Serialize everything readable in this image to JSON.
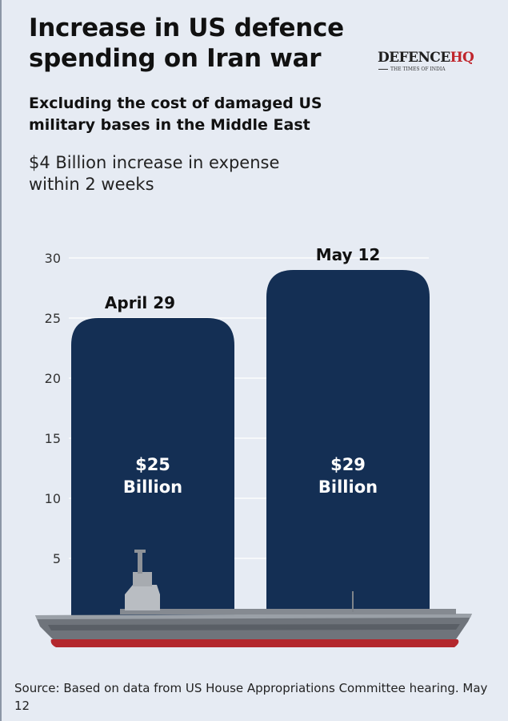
{
  "header": {
    "title": "Increase in US defence spending on Iran war",
    "subtitle": "Excluding the cost of damaged US military bases in the Middle East",
    "note": "$4 Billion increase in expense within 2 weeks"
  },
  "logo": {
    "main": "DEFENCE",
    "accent": "HQ",
    "sub": "THE TIMES OF INDIA"
  },
  "chart_data": {
    "type": "bar",
    "categories": [
      "April 29",
      "May 12"
    ],
    "values": [
      25,
      29
    ],
    "value_labels": [
      [
        "$25",
        "Billion"
      ],
      [
        "$29",
        "Billion"
      ]
    ],
    "yticks": [
      5,
      10,
      15,
      20,
      25,
      30
    ],
    "ylim": [
      0,
      30
    ],
    "grid": true,
    "title": "",
    "xlabel": "",
    "ylabel": ""
  },
  "colors": {
    "background": "#e6ebf3",
    "bar": "#142f54",
    "bar_label": "#ffffff",
    "gridline": "#ffffff",
    "hull_stripe": "#b3272d"
  },
  "decoration": {
    "ship_icon": "aircraft-carrier-illustration"
  },
  "footer": {
    "source": "Source: Based on data from US House Appropriations Committee hearing. May 12"
  }
}
